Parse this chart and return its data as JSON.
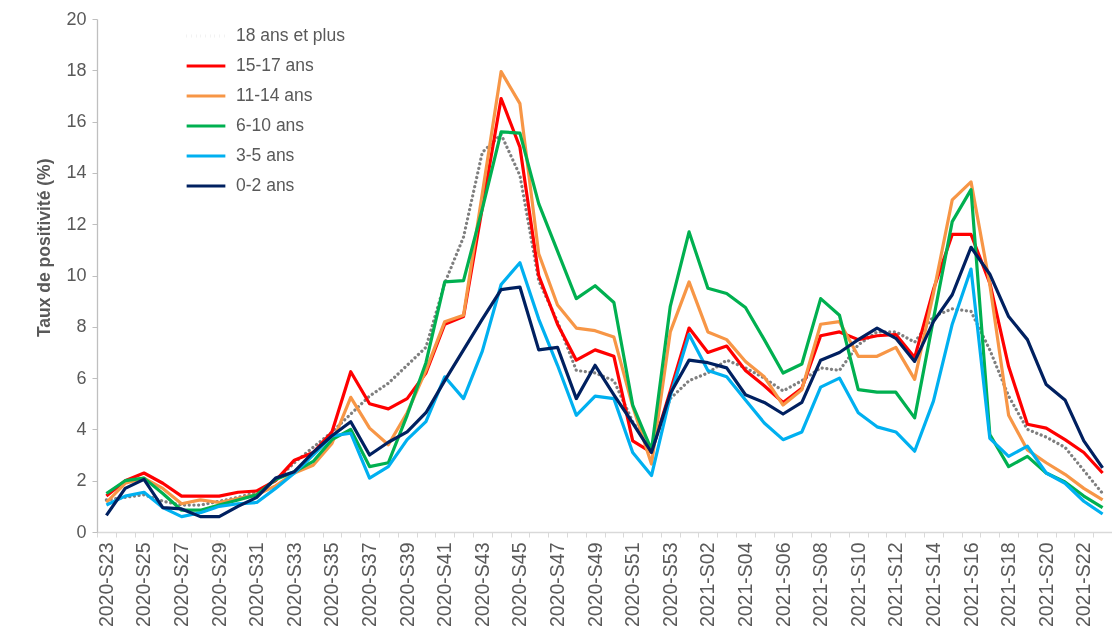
{
  "chart_data": {
    "type": "line",
    "ylabel": "Taux de positivité (%)",
    "categories": [
      "2020-S23",
      null,
      "2020-S25",
      null,
      "2020-S27",
      null,
      "2020-S29",
      null,
      "2020-S31",
      null,
      "2020-S33",
      null,
      "2020-S35",
      null,
      "2020-S37",
      null,
      "2020-S39",
      null,
      "2020-S41",
      null,
      "2020-S43",
      null,
      "2020-S45",
      null,
      "2020-S47",
      null,
      "2020-S49",
      null,
      "2020-S51",
      null,
      "2020-S53",
      null,
      "2021-S02",
      null,
      "2021-S04",
      null,
      "2021-S06",
      null,
      "2021-S08",
      null,
      "2021-S10",
      null,
      "2021-S12",
      null,
      "2021-S14",
      null,
      "2021-S16",
      null,
      "2021-S18",
      null,
      "2021-S20",
      null,
      "2021-S22",
      null
    ],
    "series": [
      {
        "name": "18 ans et plus",
        "color": "#7f7f7f",
        "line_style": "dotted",
        "values": [
          1.25,
          1.35,
          1.45,
          1.2,
          1.05,
          1.05,
          1.2,
          1.35,
          1.55,
          2.0,
          2.7,
          3.3,
          3.9,
          4.6,
          5.3,
          5.8,
          6.5,
          7.2,
          9.7,
          11.5,
          14.8,
          15.5,
          13.9,
          9.8,
          8.2,
          6.3,
          6.2,
          5.9,
          4.3,
          3.2,
          5.2,
          5.9,
          6.2,
          6.7,
          6.4,
          6.0,
          5.5,
          5.9,
          6.4,
          6.3,
          7.3,
          7.8,
          7.8,
          7.4,
          8.4,
          8.7,
          8.6,
          7.1,
          5.3,
          4.0,
          3.7,
          3.3,
          2.4,
          1.5
        ]
      },
      {
        "name": "15-17 ans",
        "color": "#ff0000",
        "values": [
          1.4,
          2.0,
          2.3,
          1.9,
          1.4,
          1.4,
          1.4,
          1.55,
          1.6,
          2.0,
          2.8,
          3.1,
          3.9,
          6.25,
          5.0,
          4.8,
          5.2,
          6.2,
          8.1,
          8.4,
          12.65,
          16.9,
          15.0,
          10.0,
          8.1,
          6.7,
          7.1,
          6.85,
          3.55,
          3.1,
          5.5,
          7.95,
          7.0,
          7.25,
          6.3,
          5.7,
          5.05,
          5.6,
          7.65,
          7.8,
          7.5,
          7.65,
          7.7,
          6.8,
          9.45,
          11.6,
          11.6,
          9.7,
          6.45,
          4.2,
          4.05,
          3.6,
          3.1,
          2.3
        ]
      },
      {
        "name": "11-14 ans",
        "color": "#f79646",
        "values": [
          1.15,
          1.9,
          2.1,
          1.7,
          1.1,
          1.25,
          1.15,
          1.3,
          1.45,
          1.8,
          2.3,
          2.6,
          3.45,
          5.25,
          4.05,
          3.4,
          4.65,
          6.3,
          8.2,
          8.45,
          13.2,
          17.95,
          16.7,
          10.85,
          8.85,
          7.95,
          7.85,
          7.6,
          4.9,
          2.65,
          7.8,
          9.75,
          7.8,
          7.5,
          6.65,
          6.05,
          4.95,
          5.55,
          8.1,
          8.2,
          6.85,
          6.85,
          7.2,
          5.95,
          9.3,
          12.95,
          13.65,
          9.65,
          4.55,
          3.2,
          2.7,
          2.25,
          1.7,
          1.25
        ]
      },
      {
        "name": "6-10 ans",
        "color": "#00b050",
        "values": [
          1.5,
          2.0,
          2.1,
          1.5,
          0.85,
          0.85,
          1.05,
          1.25,
          1.45,
          2.05,
          2.35,
          2.75,
          3.6,
          4.0,
          2.55,
          2.7,
          4.55,
          6.6,
          9.75,
          9.8,
          12.6,
          15.6,
          15.55,
          12.8,
          10.95,
          9.1,
          9.6,
          8.95,
          4.95,
          3.2,
          8.8,
          11.7,
          9.5,
          9.3,
          8.75,
          7.5,
          6.2,
          6.55,
          9.1,
          8.45,
          5.55,
          5.45,
          5.45,
          4.45,
          8.3,
          12.1,
          13.35,
          3.8,
          2.55,
          2.95,
          2.3,
          1.95,
          1.4,
          0.95
        ]
      },
      {
        "name": "3-5 ans",
        "color": "#00b0f0",
        "values": [
          1.05,
          1.4,
          1.55,
          0.95,
          0.6,
          0.75,
          1.0,
          1.1,
          1.15,
          1.7,
          2.3,
          3.0,
          3.75,
          3.85,
          2.1,
          2.55,
          3.6,
          4.3,
          6.05,
          5.2,
          7.05,
          9.65,
          10.5,
          8.3,
          6.5,
          4.55,
          5.3,
          5.2,
          3.1,
          2.2,
          5.3,
          7.7,
          6.3,
          6.05,
          5.15,
          4.25,
          3.6,
          3.9,
          5.65,
          6.0,
          4.65,
          4.1,
          3.9,
          3.15,
          5.1,
          8.1,
          10.25,
          3.65,
          2.95,
          3.35,
          2.3,
          1.9,
          1.2,
          0.7
        ]
      },
      {
        "name": "0-2 ans",
        "color": "#002060",
        "values": [
          0.65,
          1.7,
          2.05,
          0.95,
          0.9,
          0.6,
          0.6,
          1.0,
          1.35,
          2.1,
          2.35,
          3.1,
          3.75,
          4.3,
          3.0,
          3.5,
          3.9,
          4.65,
          5.9,
          7.1,
          8.3,
          9.45,
          9.55,
          7.1,
          7.2,
          5.2,
          6.5,
          5.35,
          4.25,
          3.1,
          5.4,
          6.7,
          6.6,
          6.4,
          5.35,
          5.05,
          4.6,
          5.05,
          6.7,
          7.0,
          7.5,
          7.95,
          7.55,
          6.65,
          8.2,
          9.25,
          11.1,
          10.05,
          8.4,
          7.5,
          5.75,
          5.15,
          3.55,
          2.5
        ]
      }
    ],
    "line_style": "solid",
    "ylim": [
      0,
      20
    ],
    "yticks": [
      0,
      2,
      4,
      6,
      8,
      10,
      12,
      14,
      16,
      18,
      20
    ],
    "grid": false,
    "legend": "top left"
  }
}
